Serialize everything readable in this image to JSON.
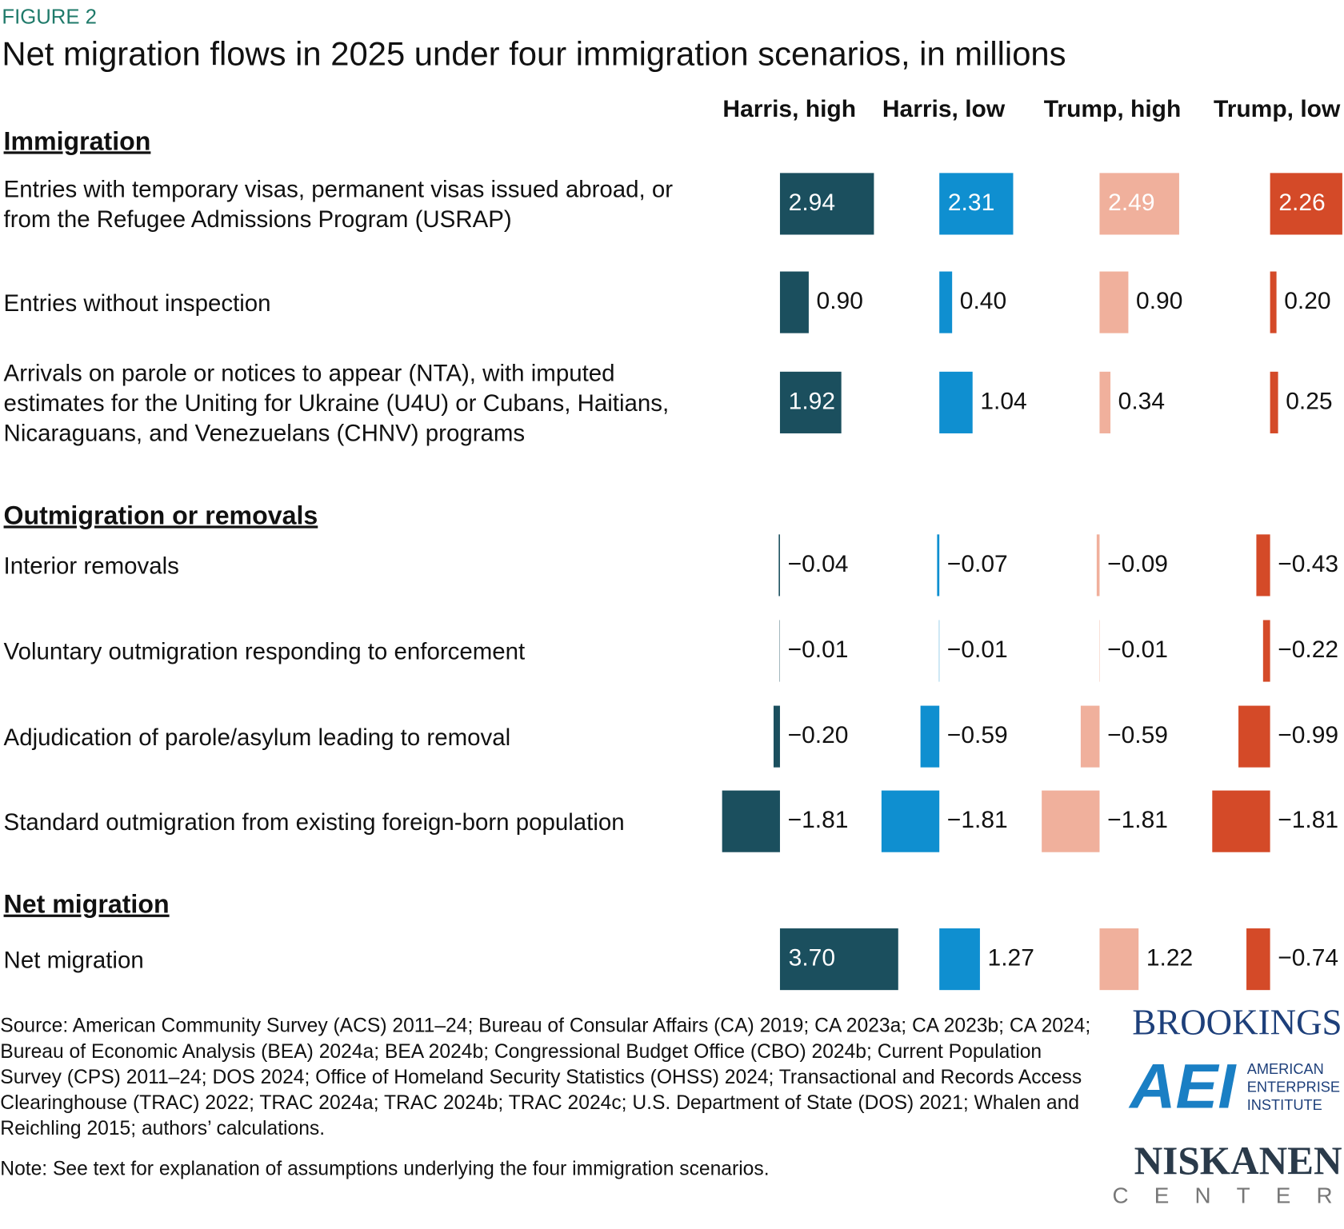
{
  "chart_data": {
    "type": "bar",
    "figure_label": "FIGURE 2",
    "title": "Net migration flows in 2025 under four immigration scenarios, in millions",
    "sections": [
      {
        "title": "Immigration",
        "categories": [
          "Entries with temporary visas, permanent visas issued abroad, or from the Refugee Admissions Program (USRAP)",
          "Entries without inspection",
          "Arrivals on parole or notices to appear (NTA), with imputed estimates for the Uniting for Ukraine (U4U) or Cubans, Haitians, Nicaraguans, and Venezuelans (CHNV) programs"
        ]
      },
      {
        "title": "Outmigration or removals",
        "categories": [
          "Interior removals",
          "Voluntary outmigration responding to enforcement",
          "Adjudication of parole/asylum leading to removal",
          "Standard outmigration from existing foreign-born population"
        ]
      },
      {
        "title": "Net migration",
        "categories": [
          "Net migration"
        ]
      }
    ],
    "series": [
      {
        "name": "Harris, high",
        "color": "#1b4f5e",
        "values": [
          [
            2.94,
            0.9,
            1.92
          ],
          [
            -0.04,
            -0.01,
            -0.2,
            -1.81
          ],
          [
            3.7
          ]
        ],
        "value_labels": [
          [
            "2.94",
            "0.90",
            "1.92"
          ],
          [
            "−0.04",
            "−0.01",
            "−0.20",
            "−1.81"
          ],
          [
            "3.70"
          ]
        ]
      },
      {
        "name": "Harris, low",
        "color": "#0f8fd0",
        "values": [
          [
            2.31,
            0.4,
            1.04
          ],
          [
            -0.07,
            -0.01,
            -0.59,
            -1.81
          ],
          [
            1.27
          ]
        ],
        "value_labels": [
          [
            "2.31",
            "0.40",
            "1.04"
          ],
          [
            "−0.07",
            "−0.01",
            "−0.59",
            "−1.81"
          ],
          [
            "1.27"
          ]
        ]
      },
      {
        "name": "Trump, high",
        "color": "#f0b09c",
        "values": [
          [
            2.49,
            0.9,
            0.34
          ],
          [
            -0.09,
            -0.01,
            -0.59,
            -1.81
          ],
          [
            1.22
          ]
        ],
        "value_labels": [
          [
            "2.49",
            "0.90",
            "0.34"
          ],
          [
            "−0.09",
            "−0.01",
            "−0.59",
            "−1.81"
          ],
          [
            "1.22"
          ]
        ]
      },
      {
        "name": "Trump, low",
        "color": "#d44a28",
        "values": [
          [
            2.26,
            0.2,
            0.25
          ],
          [
            -0.43,
            -0.22,
            -0.99,
            -1.81
          ],
          [
            -0.74
          ]
        ],
        "value_labels": [
          [
            "2.26",
            "0.20",
            "0.25"
          ],
          [
            "−0.43",
            "−0.22",
            "−0.99",
            "−1.81"
          ],
          [
            "−0.74"
          ]
        ]
      }
    ],
    "source": "Source: American Community Survey (ACS) 2011–24; Bureau of Consular Affairs (CA) 2019; CA 2023a; CA 2023b; CA 2024; Bureau of Economic Analysis (BEA) 2024a; BEA 2024b; Congressional Budget Office (CBO) 2024b; Current Population Survey (CPS) 2011–24; DOS 2024; Office of Homeland Security Statistics (OHSS) 2024; Transactional and Records Access Clearinghouse (TRAC) 2022; TRAC 2024a; TRAC 2024b; TRAC 2024c; U.S. Department of State (DOS) 2021; Whalen and Reichling 2015; authors’ calculations.",
    "note": "Note: See text for explanation of assumptions underlying the four immigration scenarios.",
    "logos": {
      "brookings": "BROOKINGS",
      "aei": "AEI",
      "aei_name": "AMERICAN ENTERPRISE INSTITUTE",
      "niskanen": "NISKANEN",
      "niskanen_sub": "CENTER"
    }
  }
}
